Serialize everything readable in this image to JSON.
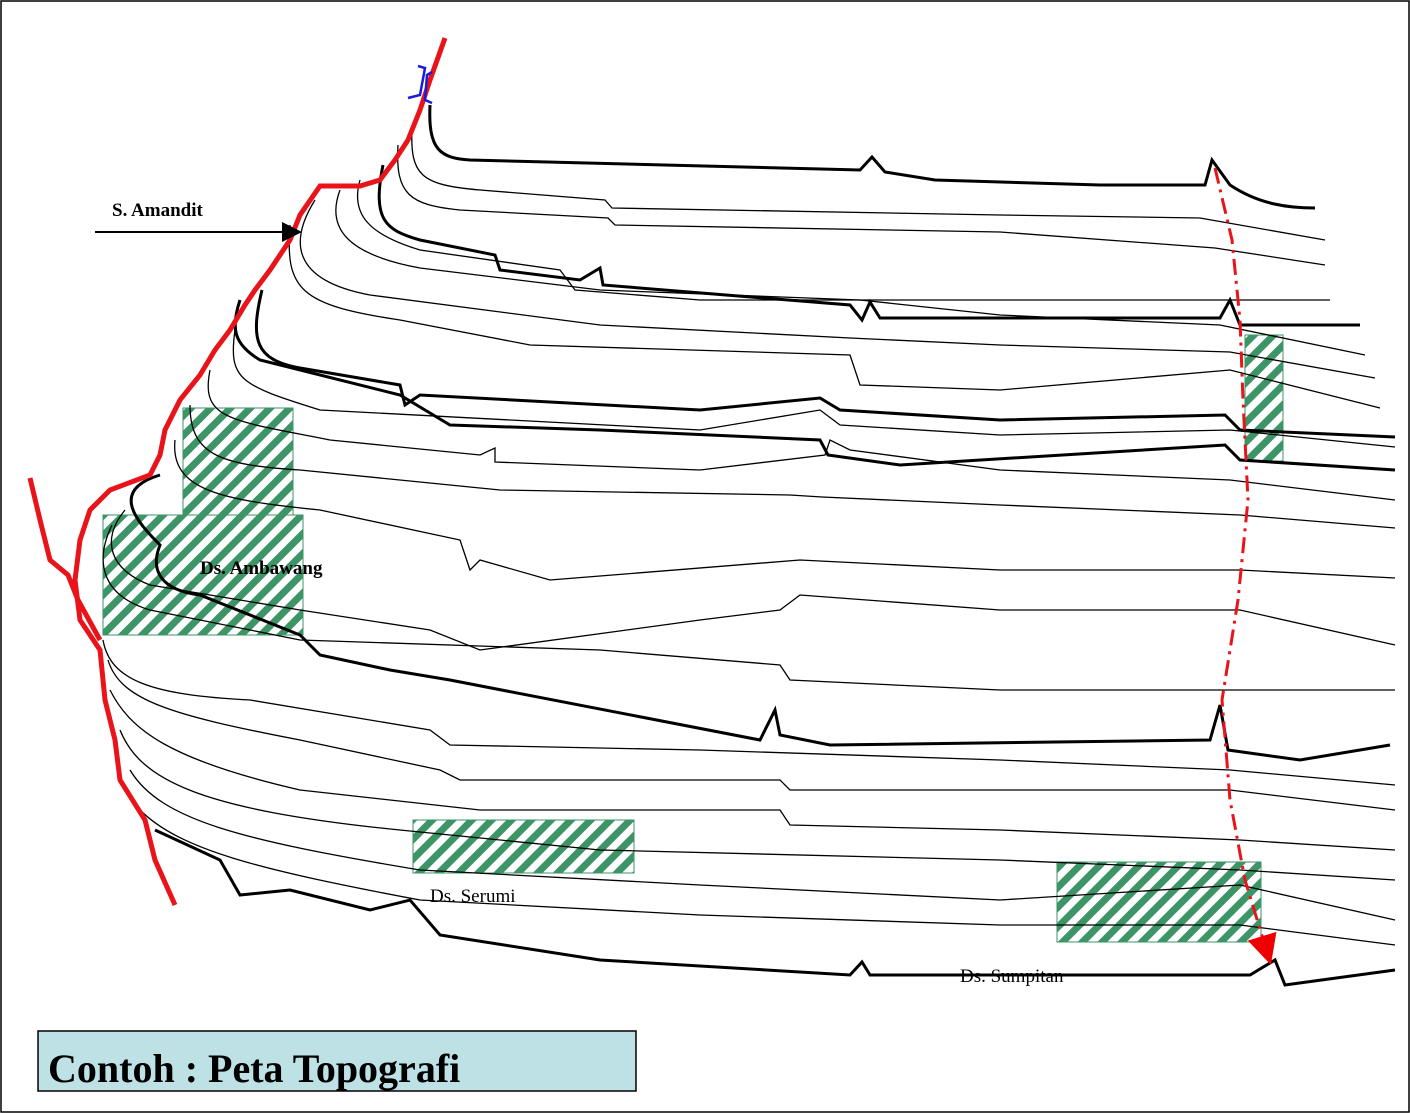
{
  "labels": {
    "river": "S. Amandit",
    "villages": [
      "Ds. Ambawang",
      "Ds. Serumi",
      "Ds. Sumpitan"
    ]
  },
  "caption": "Contoh : Peta Topografi"
}
